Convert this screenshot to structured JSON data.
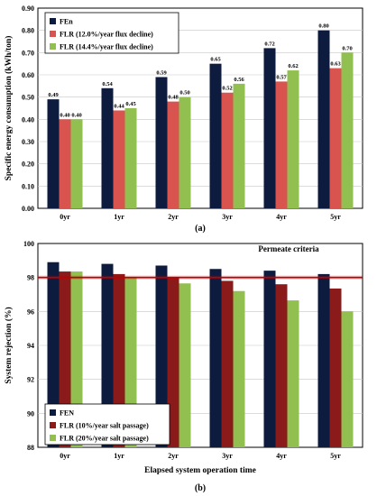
{
  "chart_data": [
    {
      "type": "bar",
      "panel_label": "(a)",
      "categories": [
        "0yr",
        "1yr",
        "2yr",
        "3yr",
        "4yr",
        "5yr"
      ],
      "ylabel": "Specific energy consumption (kWh/ton)",
      "xlabel": "",
      "ylim": [
        0,
        0.9
      ],
      "yticks": [
        "0.00",
        "0.10",
        "0.20",
        "0.30",
        "0.40",
        "0.50",
        "0.60",
        "0.70",
        "0.80",
        "0.90"
      ],
      "legend_position": "top-left",
      "series": [
        {
          "name": "FEn",
          "color": "#0d1b3e",
          "values": [
            0.49,
            0.54,
            0.59,
            0.65,
            0.72,
            0.8
          ],
          "labels": [
            "0.49",
            "0.54",
            "0.59",
            "0.65",
            "0.72",
            "0.80"
          ]
        },
        {
          "name": "FLR (12.0%/year flux decline)",
          "color": "#d9534f",
          "values": [
            0.4,
            0.44,
            0.48,
            0.52,
            0.57,
            0.63
          ],
          "labels": [
            "0.40",
            "0.44",
            "0.48",
            "0.52",
            "0.57",
            "0.63"
          ]
        },
        {
          "name": "FLR (14.4%/year flux decline)",
          "color": "#92c050",
          "values": [
            0.4,
            0.45,
            0.5,
            0.56,
            0.62,
            0.7
          ],
          "labels": [
            "0.40",
            "0.45",
            "0.50",
            "0.56",
            "0.62",
            "0.70"
          ]
        }
      ]
    },
    {
      "type": "bar",
      "panel_label": "(b)",
      "categories": [
        "0yr",
        "1yr",
        "2yr",
        "3yr",
        "4yr",
        "5yr"
      ],
      "ylabel": "System rejection (%)",
      "xlabel": "Elapsed system operation time",
      "ylim": [
        88,
        100
      ],
      "yticks": [
        "88",
        "90",
        "92",
        "94",
        "96",
        "98",
        "100"
      ],
      "legend_position": "bottom-left",
      "annotation": {
        "text": "Permeate criteria",
        "value": 98.0,
        "color": "#c00000"
      },
      "series": [
        {
          "name": "FEN",
          "color": "#0d1b3e",
          "values": [
            98.9,
            98.8,
            98.7,
            98.5,
            98.4,
            98.2
          ]
        },
        {
          "name": "FLR (10%/year salt passage)",
          "color": "#8b1a1a",
          "values": [
            98.35,
            98.2,
            98.0,
            97.8,
            97.6,
            97.35
          ]
        },
        {
          "name": "FLR (20%/year salt passage)",
          "color": "#92c050",
          "values": [
            98.35,
            98.0,
            97.65,
            97.2,
            96.65,
            96.0
          ]
        }
      ]
    }
  ]
}
